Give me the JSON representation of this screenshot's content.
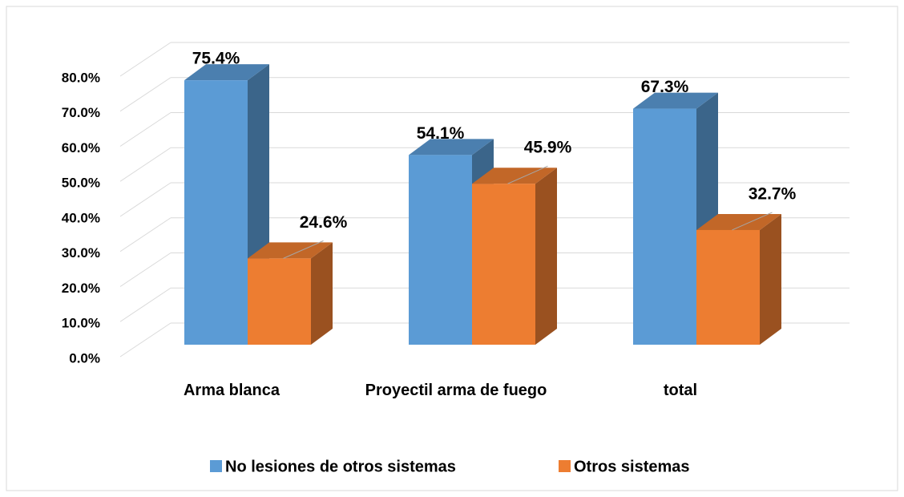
{
  "chart_data": {
    "type": "bar3d",
    "categories": [
      "Arma blanca",
      "Proyectil arma de fuego",
      "total"
    ],
    "series": [
      {
        "name": "No lesiones de otros sistemas",
        "color": "#5b9bd5",
        "values": [
          75.4,
          54.1,
          67.3
        ],
        "value_labels": [
          "75.4%",
          "54.1%",
          "67.3%"
        ]
      },
      {
        "name": "Otros sistemas",
        "color": "#ed7d31",
        "values": [
          24.6,
          45.9,
          32.7
        ],
        "value_labels": [
          "24.6%",
          "45.9%",
          "32.7%"
        ]
      }
    ],
    "ylim": [
      0,
      80
    ],
    "yticks": [
      {
        "value": 0,
        "label": "0.0%"
      },
      {
        "value": 10,
        "label": "10.0%"
      },
      {
        "value": 20,
        "label": "20.0%"
      },
      {
        "value": 30,
        "label": "30.0%"
      },
      {
        "value": 40,
        "label": "40.0%"
      },
      {
        "value": 50,
        "label": "50.0%"
      },
      {
        "value": 60,
        "label": "60.0%"
      },
      {
        "value": 70,
        "label": "70.0%"
      },
      {
        "value": 80,
        "label": "80.0%"
      }
    ],
    "grid": true,
    "legend": "bottom"
  }
}
